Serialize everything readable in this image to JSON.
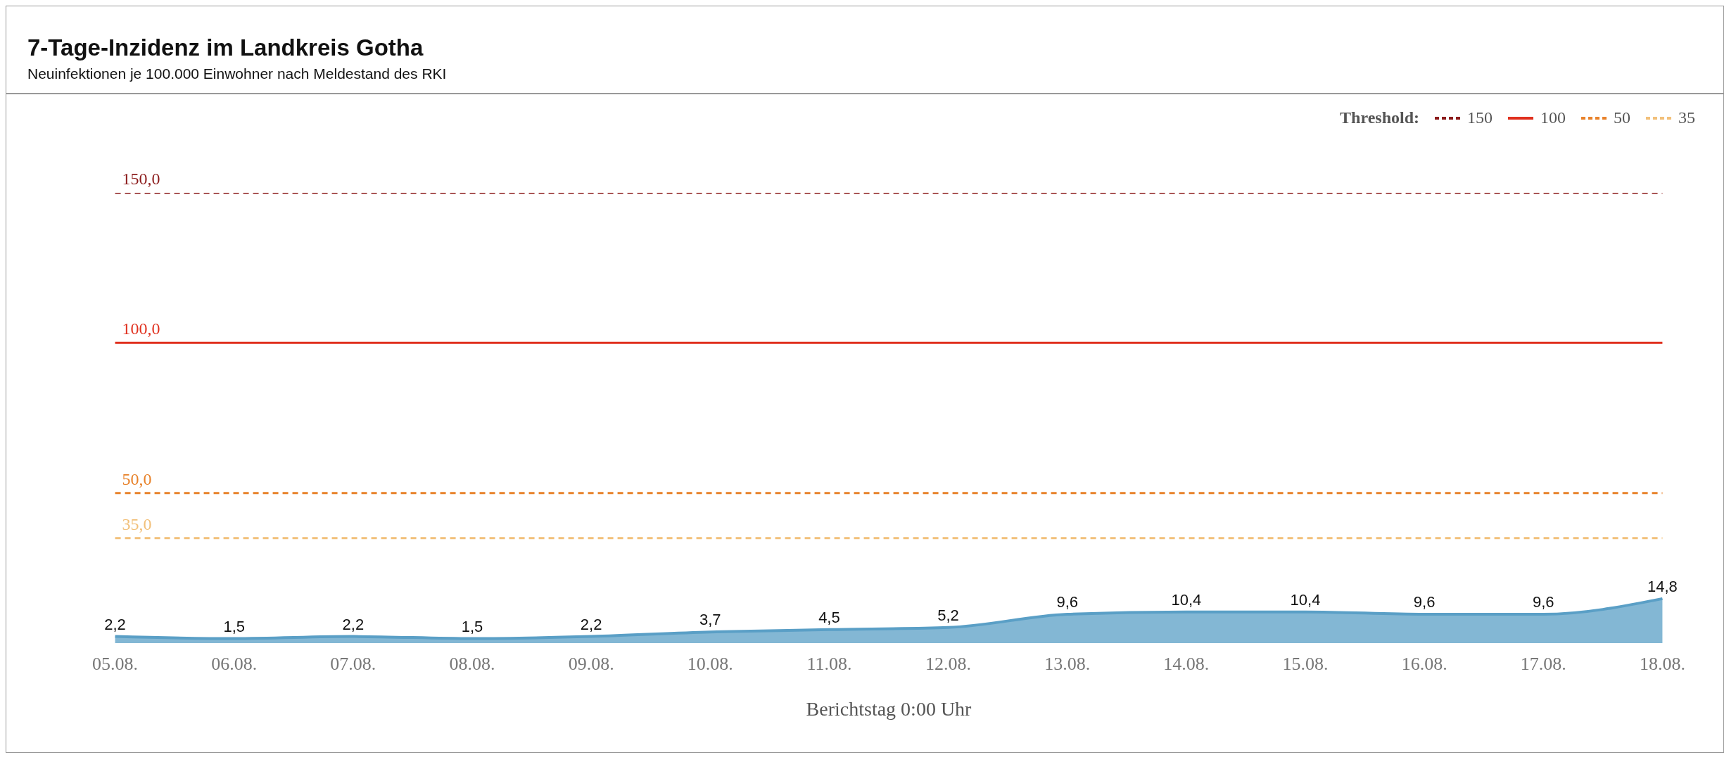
{
  "chart_data": {
    "type": "area",
    "title": "7-Tage-Inzidenz im Landkreis Gotha",
    "subtitle": "Neuinfektionen je 100.000 Einwohner nach Meldestand des RKI",
    "xlabel": "Berichtstag 0:00 Uhr",
    "legend_title": "Threshold:",
    "legend": "top right",
    "marker": "none",
    "categories": [
      "05.08.",
      "06.08.",
      "07.08.",
      "08.08.",
      "09.08.",
      "10.08.",
      "11.08.",
      "12.08.",
      "13.08.",
      "14.08.",
      "15.08.",
      "16.08.",
      "17.08.",
      "18.08."
    ],
    "series": [
      {
        "type": "line",
        "name": "150",
        "color": "#8b1a1a",
        "line_style": "dashed",
        "values": [
          150,
          150,
          150,
          150,
          150,
          150,
          150,
          150,
          150,
          150,
          150,
          150,
          150,
          150
        ],
        "value_labels": [
          "150,0",
          null,
          null,
          null,
          null,
          null,
          null,
          null,
          null,
          null,
          null,
          null,
          null,
          null
        ]
      },
      {
        "type": "line",
        "name": "100",
        "color": "#e0301e",
        "line_style": "solid",
        "values": [
          100,
          100,
          100,
          100,
          100,
          100,
          100,
          100,
          100,
          100,
          100,
          100,
          100,
          100
        ],
        "value_labels": [
          "100,0",
          null,
          null,
          null,
          null,
          null,
          null,
          null,
          null,
          null,
          null,
          null,
          null,
          null
        ]
      },
      {
        "type": "line",
        "name": "50",
        "color": "#e8822a",
        "line_style": "dashed",
        "values": [
          50,
          50,
          50,
          50,
          50,
          50,
          50,
          50,
          50,
          50,
          50,
          50,
          50,
          50
        ],
        "value_labels": [
          "50,0",
          null,
          null,
          null,
          null,
          null,
          null,
          null,
          null,
          null,
          null,
          null,
          null,
          null
        ]
      },
      {
        "type": "line",
        "name": "35",
        "color": "#f2c07a",
        "line_style": "dashed",
        "values": [
          35,
          35,
          35,
          35,
          35,
          35,
          35,
          35,
          35,
          35,
          35,
          35,
          35,
          35
        ],
        "value_labels": [
          "35,0",
          null,
          null,
          null,
          null,
          null,
          null,
          null,
          null,
          null,
          null,
          null,
          null,
          null
        ]
      },
      {
        "color": "#5a9fc6",
        "values": [
          2.2,
          1.5,
          2.2,
          1.5,
          2.2,
          3.7,
          4.5,
          5.2,
          9.6,
          10.4,
          10.4,
          9.6,
          9.6,
          14.8
        ],
        "value_labels": [
          "2,2",
          "1,5",
          "2,2",
          "1,5",
          "2,2",
          "3,7",
          "4,5",
          "5,2",
          "9,6",
          "10,4",
          "10,4",
          "9,6",
          "9,6",
          "14,8"
        ]
      }
    ]
  }
}
